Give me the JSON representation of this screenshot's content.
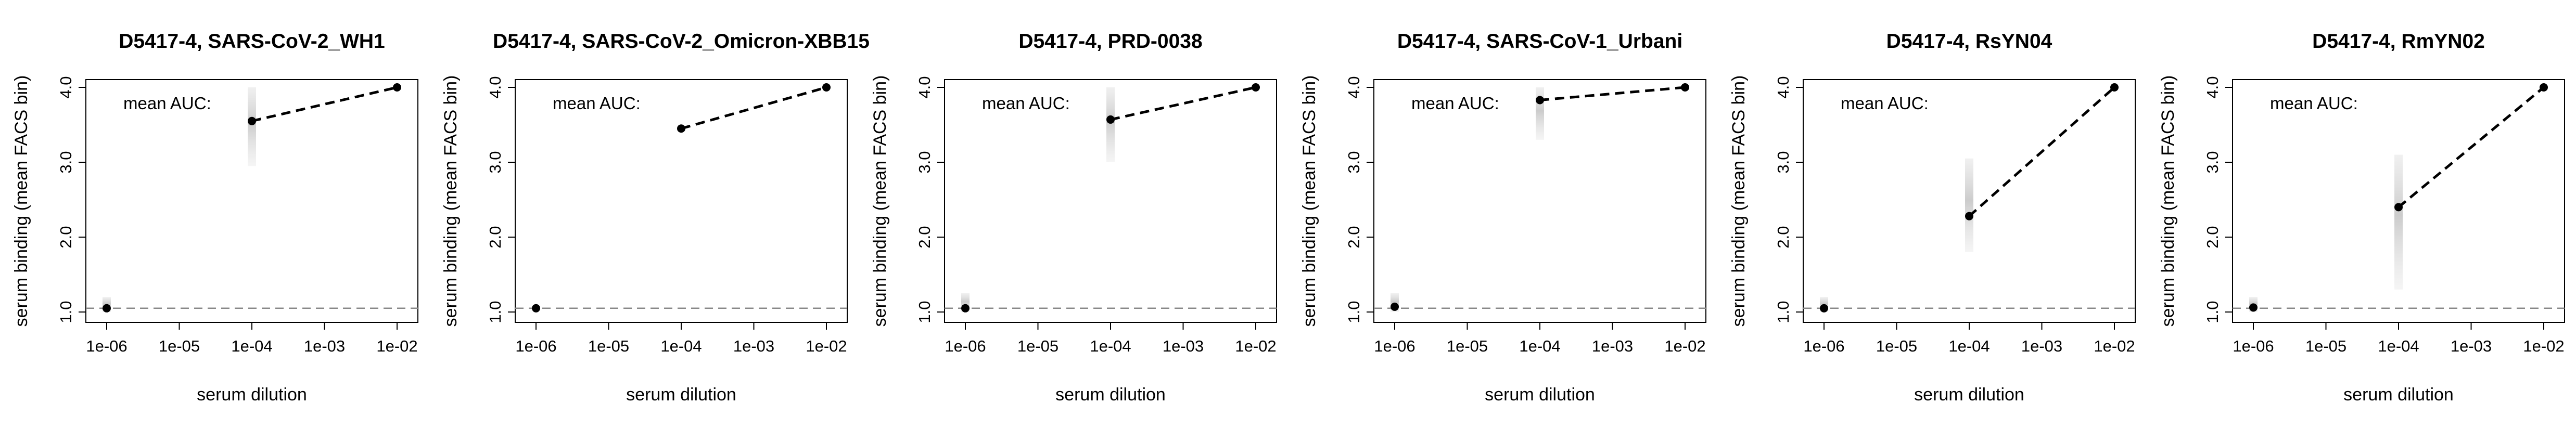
{
  "figure": {
    "background": "#ffffff"
  },
  "chart_data": [
    {
      "type": "scatter",
      "title": "D5417-4, SARS-CoV-2_WH1",
      "xlabel": "serum dilution",
      "ylabel": "serum binding (mean FACS bin)",
      "x_scale": "log10",
      "xlim": [
        1e-06,
        0.01
      ],
      "ylim": [
        1.0,
        4.0
      ],
      "x_ticks": [
        "1e-06",
        "1e-05",
        "1e-04",
        "1e-03",
        "1e-02"
      ],
      "y_ticks": [
        "1.0",
        "2.0",
        "3.0",
        "4.0"
      ],
      "annotation": "mean AUC:",
      "baseline": 1.05,
      "points": [
        {
          "x": 1e-06,
          "y": 1.05
        },
        {
          "x": 0.0001,
          "y": 3.55
        },
        {
          "x": 0.01,
          "y": 4.0
        }
      ],
      "dashed_segment_from_index": 1,
      "spread": [
        [
          1.0,
          1.2
        ],
        [
          2.95,
          4.0
        ],
        null
      ]
    },
    {
      "type": "scatter",
      "title": "D5417-4, SARS-CoV-2_Omicron-XBB15",
      "xlabel": "serum dilution",
      "ylabel": "serum binding (mean FACS bin)",
      "x_scale": "log10",
      "xlim": [
        1e-06,
        0.01
      ],
      "ylim": [
        1.0,
        4.0
      ],
      "x_ticks": [
        "1e-06",
        "1e-05",
        "1e-04",
        "1e-03",
        "1e-02"
      ],
      "y_ticks": [
        "1.0",
        "2.0",
        "3.0",
        "4.0"
      ],
      "annotation": "mean AUC:",
      "baseline": 1.05,
      "points": [
        {
          "x": 1e-06,
          "y": 1.05
        },
        {
          "x": 0.0001,
          "y": 3.45
        },
        {
          "x": 0.01,
          "y": 4.0
        }
      ],
      "dashed_segment_from_index": 1,
      "spread": [
        null,
        null,
        null
      ]
    },
    {
      "type": "scatter",
      "title": "D5417-4, PRD-0038",
      "xlabel": "serum dilution",
      "ylabel": "serum binding (mean FACS bin)",
      "x_scale": "log10",
      "xlim": [
        1e-06,
        0.01
      ],
      "ylim": [
        1.0,
        4.0
      ],
      "x_ticks": [
        "1e-06",
        "1e-05",
        "1e-04",
        "1e-03",
        "1e-02"
      ],
      "y_ticks": [
        "1.0",
        "2.0",
        "3.0",
        "4.0"
      ],
      "annotation": "mean AUC:",
      "baseline": 1.05,
      "points": [
        {
          "x": 1e-06,
          "y": 1.05
        },
        {
          "x": 0.0001,
          "y": 3.57
        },
        {
          "x": 0.01,
          "y": 4.0
        }
      ],
      "dashed_segment_from_index": 1,
      "spread": [
        [
          1.0,
          1.25
        ],
        [
          3.0,
          4.0
        ],
        null
      ]
    },
    {
      "type": "scatter",
      "title": "D5417-4, SARS-CoV-1_Urbani",
      "xlabel": "serum dilution",
      "ylabel": "serum binding (mean FACS bin)",
      "x_scale": "log10",
      "xlim": [
        1e-06,
        0.01
      ],
      "ylim": [
        1.0,
        4.0
      ],
      "x_ticks": [
        "1e-06",
        "1e-05",
        "1e-04",
        "1e-03",
        "1e-02"
      ],
      "y_ticks": [
        "1.0",
        "2.0",
        "3.0",
        "4.0"
      ],
      "annotation": "mean AUC:",
      "baseline": 1.05,
      "points": [
        {
          "x": 1e-06,
          "y": 1.07
        },
        {
          "x": 0.0001,
          "y": 3.83
        },
        {
          "x": 0.01,
          "y": 4.0
        }
      ],
      "dashed_segment_from_index": 1,
      "spread": [
        [
          1.0,
          1.25
        ],
        [
          3.3,
          4.0
        ],
        null
      ]
    },
    {
      "type": "scatter",
      "title": "D5417-4, RsYN04",
      "xlabel": "serum dilution",
      "ylabel": "serum binding (mean FACS bin)",
      "x_scale": "log10",
      "xlim": [
        1e-06,
        0.01
      ],
      "ylim": [
        1.0,
        4.0
      ],
      "x_ticks": [
        "1e-06",
        "1e-05",
        "1e-04",
        "1e-03",
        "1e-02"
      ],
      "y_ticks": [
        "1.0",
        "2.0",
        "3.0",
        "4.0"
      ],
      "annotation": "mean AUC:",
      "baseline": 1.05,
      "points": [
        {
          "x": 1e-06,
          "y": 1.05
        },
        {
          "x": 0.0001,
          "y": 2.28
        },
        {
          "x": 0.01,
          "y": 4.0
        }
      ],
      "dashed_segment_from_index": 1,
      "spread": [
        [
          1.0,
          1.2
        ],
        [
          1.8,
          3.05
        ],
        null
      ]
    },
    {
      "type": "scatter",
      "title": "D5417-4, RmYN02",
      "xlabel": "serum dilution",
      "ylabel": "serum binding (mean FACS bin)",
      "x_scale": "log10",
      "xlim": [
        1e-06,
        0.01
      ],
      "ylim": [
        1.0,
        4.0
      ],
      "x_ticks": [
        "1e-06",
        "1e-05",
        "1e-04",
        "1e-03",
        "1e-02"
      ],
      "y_ticks": [
        "1.0",
        "2.0",
        "3.0",
        "4.0"
      ],
      "annotation": "mean AUC:",
      "baseline": 1.05,
      "points": [
        {
          "x": 1e-06,
          "y": 1.06
        },
        {
          "x": 0.0001,
          "y": 2.4
        },
        {
          "x": 0.01,
          "y": 4.0
        }
      ],
      "dashed_segment_from_index": 1,
      "spread": [
        [
          1.0,
          1.2
        ],
        [
          1.3,
          3.1
        ],
        null
      ]
    }
  ]
}
